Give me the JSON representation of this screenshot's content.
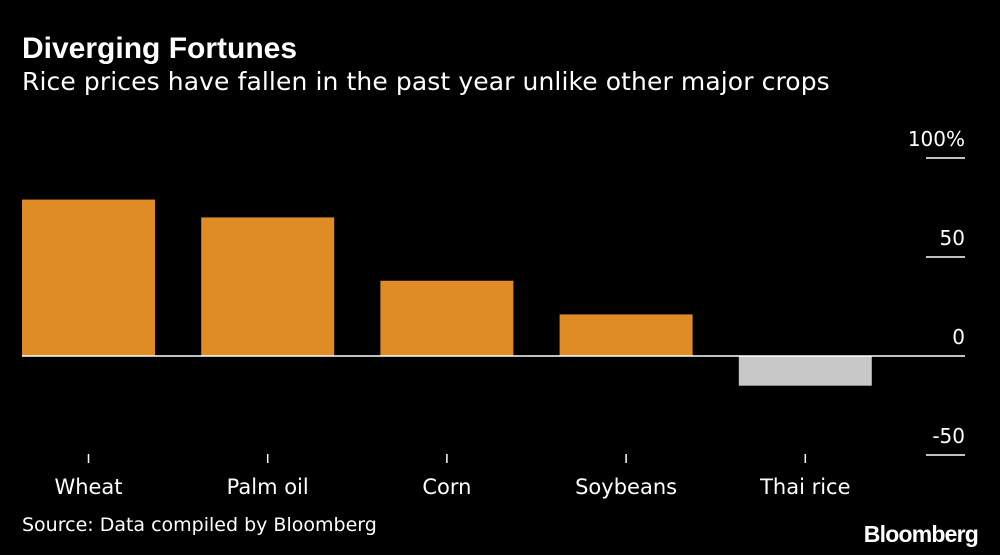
{
  "title": "Diverging Fortunes",
  "subtitle": "Rice prices have fallen in the past year unlike other major crops",
  "source": "Source: Data compiled by Bloomberg",
  "logo": "Bloomberg",
  "colors": {
    "background": "#000000",
    "positive_bar": "#e08c26",
    "negative_bar": "#c8c8c8",
    "text": "#ffffff"
  },
  "chart_data": {
    "type": "bar",
    "categories": [
      "Wheat",
      "Palm oil",
      "Corn",
      "Soybeans",
      "Thai rice"
    ],
    "values": [
      79,
      70,
      38,
      21,
      -15
    ],
    "ylim": [
      -50,
      100
    ],
    "yticks": [
      100,
      50,
      0,
      -50
    ],
    "ytick_labels": [
      "100%",
      "50",
      "0",
      "-50"
    ],
    "xlabel": "",
    "ylabel": "",
    "grid": false
  }
}
